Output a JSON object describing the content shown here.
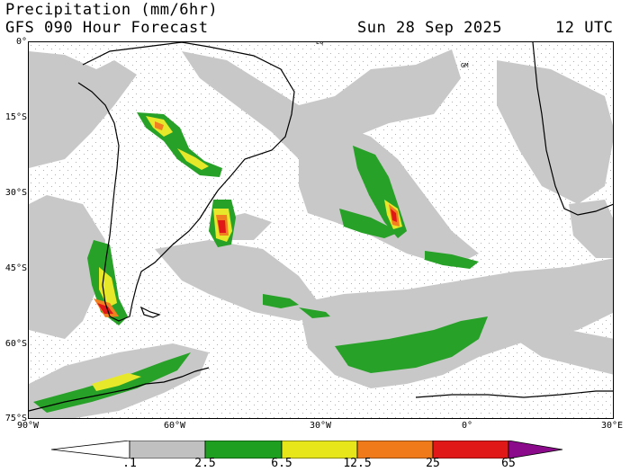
{
  "header": {
    "title": "Precipitation (mm/6hr)",
    "subtitle": "GFS 090 Hour Forecast",
    "date": "Sun 28 Sep 2025",
    "time": "12 UTC"
  },
  "map": {
    "lat_labels": [
      "0°",
      "15°S",
      "30°S",
      "45°S",
      "60°S",
      "75°S"
    ],
    "lon_labels": [
      "90°W",
      "60°W",
      "30°W",
      "0°",
      "30°E"
    ],
    "markers": {
      "equator": "EQ",
      "greenwich": "GM"
    }
  },
  "colorbar": {
    "labels": [
      ".1",
      "2.5",
      "6.5",
      "12.5",
      "25",
      "65"
    ],
    "colors": [
      "#ffffff",
      "#c0c0c0",
      "#1f9f1f",
      "#e6e61a",
      "#f07a1a",
      "#e01818",
      "#8b0a8b"
    ]
  },
  "colors": {
    "light_precip": "#c8c8c8",
    "moderate_precip": "#27a127",
    "heavy_precip": "#e8e82a",
    "very_heavy": "#f08020",
    "extreme": "#e01818",
    "coast": "#000000"
  }
}
